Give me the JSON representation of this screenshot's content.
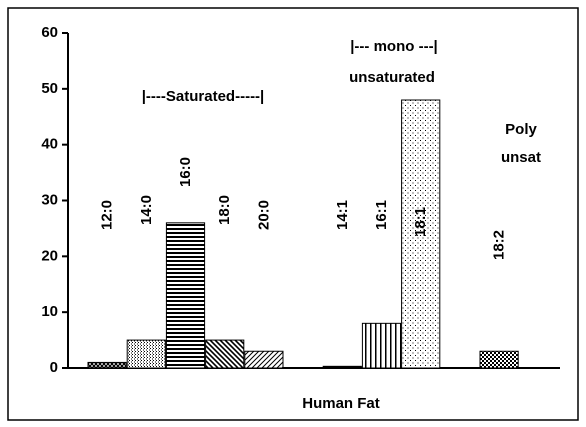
{
  "chart_data": {
    "type": "bar",
    "x_label": "Human Fat",
    "categories": [
      "12:0",
      "14:0",
      "16:0",
      "18:0",
      "20:0",
      null,
      "14:1",
      "16:1",
      "18:1",
      null,
      "18:2"
    ],
    "values": [
      1,
      5,
      26,
      5,
      3,
      null,
      0.3,
      8,
      48,
      null,
      3
    ],
    "ylim": [
      0,
      60
    ],
    "yticks": [
      0,
      10,
      20,
      30,
      40,
      50,
      60
    ],
    "annotations": [
      "|----Saturated-----|",
      "|--- mono ---|",
      "unsaturated",
      "Poly",
      "unsat"
    ]
  }
}
